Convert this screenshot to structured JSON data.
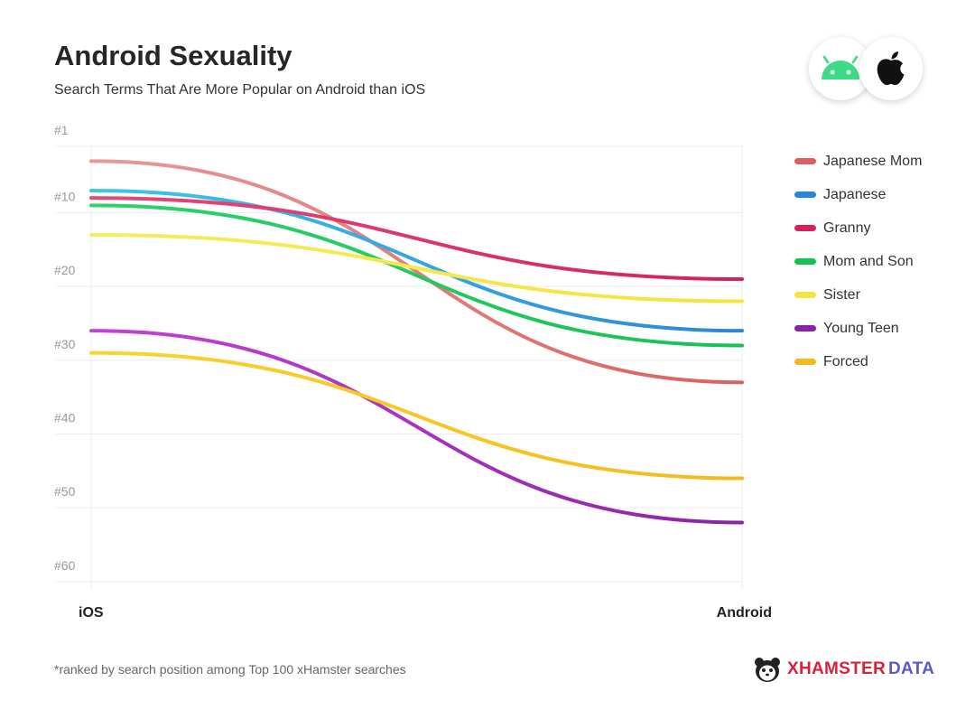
{
  "header": {
    "title": "Android Sexuality",
    "subtitle": "Search Terms That Are More Popular on Android than iOS"
  },
  "os_badges": [
    {
      "name": "android",
      "icon": "android-icon",
      "color": "#3ddc84"
    },
    {
      "name": "apple",
      "icon": "apple-icon",
      "color": "#111111"
    }
  ],
  "chart_data": {
    "type": "line",
    "title": "Android Sexuality",
    "subtitle": "Search Terms That Are More Popular on Android than iOS",
    "x": [
      "iOS",
      "Android"
    ],
    "y_ticks": [
      "#1",
      "#10",
      "#20",
      "#30",
      "#40",
      "#50",
      "#60"
    ],
    "y_tick_values": [
      1,
      10,
      20,
      30,
      40,
      50,
      60
    ],
    "ylim": [
      1,
      61
    ],
    "y_inverted": true,
    "grid": true,
    "legend_position": "right",
    "series": [
      {
        "name": "Japanese Mom",
        "values": [
          3,
          33
        ],
        "color": "#d9615e",
        "color_start": "#e89a9a"
      },
      {
        "name": "Japanese",
        "values": [
          7,
          26
        ],
        "color": "#2b86da",
        "color_start": "#3cc7ea"
      },
      {
        "name": "Granny",
        "values": [
          8,
          19
        ],
        "color": "#d4215e",
        "color_start": "#e24a78"
      },
      {
        "name": "Mom and Son",
        "values": [
          9,
          28
        ],
        "color": "#16c153",
        "color_start": "#2ed36a"
      },
      {
        "name": "Sister",
        "values": [
          13,
          22
        ],
        "color": "#f4e43b",
        "color_start": "#f7ec60"
      },
      {
        "name": "Young Teen",
        "values": [
          26,
          52
        ],
        "color": "#8a24a6",
        "color_start": "#c442d6"
      },
      {
        "name": "Forced",
        "values": [
          29,
          46
        ],
        "color": "#f6b81a",
        "color_start": "#f9d52d"
      }
    ]
  },
  "footnote": "*ranked by search position among Top 100 xHamster searches",
  "brand": {
    "name": "XHAMSTER",
    "sub": "DATA",
    "icon": "hamster-logo-icon"
  }
}
